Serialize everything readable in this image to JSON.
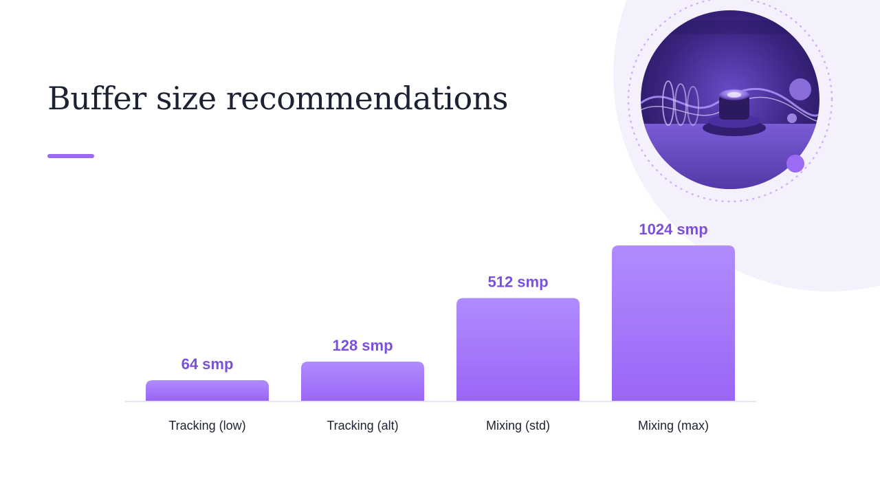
{
  "slide": {
    "title": "Buffer size recommendations"
  },
  "colors": {
    "accent": "#9b6cf3",
    "bar_top": "#b08cff",
    "bar_bottom": "#9a66f6",
    "value_label": "#7b4fdc",
    "title_text": "#1d2233",
    "deco_background": "#f4f1fd"
  },
  "hero_image": {
    "icon": "audio-knob-waveform-illustration"
  },
  "chart_data": {
    "type": "bar",
    "categories": [
      "Tracking (low)",
      "Tracking (alt)",
      "Mixing (std)",
      "Mixing (max)"
    ],
    "values": [
      64,
      128,
      512,
      1024
    ],
    "value_labels": [
      "64 smp",
      "128 smp",
      "512 smp",
      "1024 smp"
    ],
    "title": "",
    "xlabel": "",
    "ylabel": "",
    "ylim": [
      0,
      1024
    ],
    "grid": false,
    "legend": "none"
  }
}
